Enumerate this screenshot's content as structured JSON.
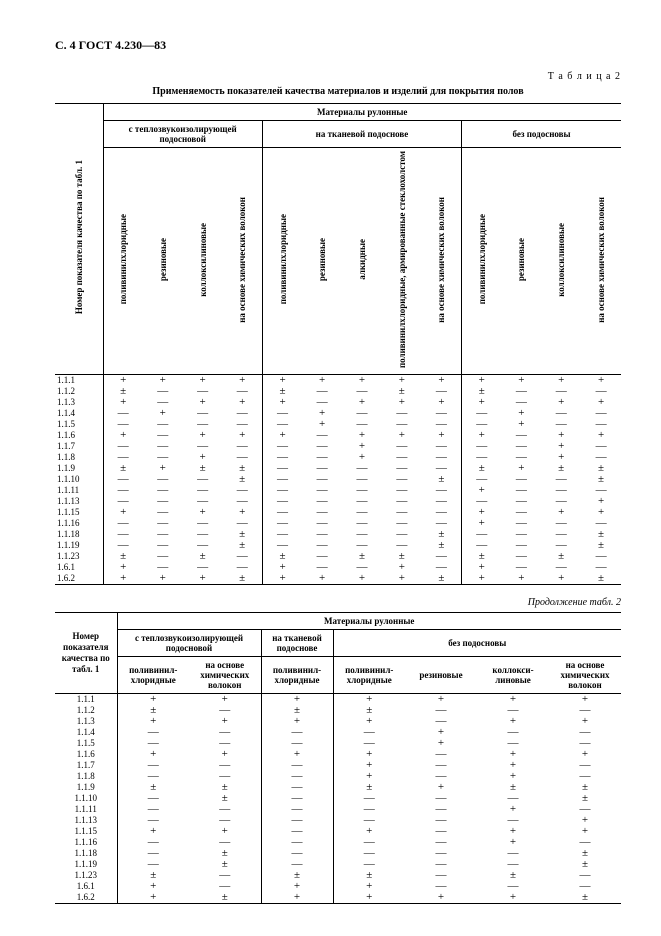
{
  "header": "С. 4 ГОСТ 4.230—83",
  "table_label": "Т а б л и ц а  2",
  "caption": "Применяемость показателей качества материалов и изделий для покрытия полов",
  "cont_label": "Продолжение табл. 2",
  "top": {
    "super": "Материалы рулонные",
    "groups": [
      "с теплозвукоизолирующей подосновой",
      "на тканевой подоснове",
      "без подосновы"
    ],
    "rowhdr": "Номер показателя качества по табл. 1",
    "cols": [
      "поливинилхлоридные",
      "резиновые",
      "коллоксилиновые",
      "на основе химических волокон",
      "поливинилхлоридные",
      "резиновые",
      "алкидные",
      "поливинилхлоридные, армированные стеклохолстом",
      "на основе химических волокон",
      "поливинилхлоридные",
      "резиновые",
      "коллоксилиновые",
      "на основе химических волокон"
    ],
    "rows": [
      {
        "k": "1.1.1",
        "v": [
          "+",
          "+",
          "+",
          "+",
          "+",
          "+",
          "+",
          "+",
          "+",
          "+",
          "+",
          "+",
          "+"
        ]
      },
      {
        "k": "1.1.2",
        "v": [
          "±",
          "—",
          "—",
          "—",
          "±",
          "—",
          "—",
          "±",
          "—",
          "±",
          "—",
          "—",
          "—"
        ]
      },
      {
        "k": "1.1.3",
        "v": [
          "+",
          "—",
          "+",
          "+",
          "+",
          "—",
          "+",
          "+",
          "+",
          "+",
          "—",
          "+",
          "+"
        ]
      },
      {
        "k": "1.1.4",
        "v": [
          "—",
          "+",
          "—",
          "—",
          "—",
          "+",
          "—",
          "—",
          "—",
          "—",
          "+",
          "—",
          "—"
        ]
      },
      {
        "k": "1.1.5",
        "v": [
          "—",
          "—",
          "—",
          "—",
          "—",
          "+",
          "—",
          "—",
          "—",
          "—",
          "+",
          "—",
          "—"
        ]
      },
      {
        "k": "1.1.6",
        "v": [
          "+",
          "—",
          "+",
          "+",
          "+",
          "—",
          "+",
          "+",
          "+",
          "+",
          "—",
          "+",
          "+"
        ]
      },
      {
        "k": "1.1.7",
        "v": [
          "—",
          "—",
          "—",
          "—",
          "—",
          "—",
          "+",
          "—",
          "—",
          "—",
          "—",
          "+",
          "—"
        ]
      },
      {
        "k": "1.1.8",
        "v": [
          "—",
          "—",
          "+",
          "—",
          "—",
          "—",
          "+",
          "—",
          "—",
          "—",
          "—",
          "+",
          "—"
        ]
      },
      {
        "k": "1.1.9",
        "v": [
          "±",
          "+",
          "±",
          "±",
          "—",
          "—",
          "—",
          "—",
          "—",
          "±",
          "+",
          "±",
          "±"
        ]
      },
      {
        "k": "1.1.10",
        "v": [
          "—",
          "—",
          "—",
          "±",
          "—",
          "—",
          "—",
          "—",
          "±",
          "—",
          "—",
          "—",
          "±"
        ]
      },
      {
        "k": "1.1.11",
        "v": [
          "—",
          "—",
          "—",
          "—",
          "—",
          "—",
          "—",
          "—",
          "—",
          "+",
          "—",
          "—",
          "—"
        ]
      },
      {
        "k": "1.1.13",
        "v": [
          "—",
          "—",
          "—",
          "—",
          "—",
          "—",
          "—",
          "—",
          "—",
          "—",
          "—",
          "—",
          "+"
        ]
      },
      {
        "k": "1.1.15",
        "v": [
          "+",
          "—",
          "+",
          "+",
          "—",
          "—",
          "—",
          "—",
          "—",
          "+",
          "—",
          "+",
          "+"
        ]
      },
      {
        "k": "1.1.16",
        "v": [
          "—",
          "—",
          "—",
          "—",
          "—",
          "—",
          "—",
          "—",
          "—",
          "+",
          "—",
          "—",
          "—"
        ]
      },
      {
        "k": "1.1.18",
        "v": [
          "—",
          "—",
          "—",
          "±",
          "—",
          "—",
          "—",
          "—",
          "±",
          "—",
          "—",
          "—",
          "±"
        ]
      },
      {
        "k": "1.1.19",
        "v": [
          "—",
          "—",
          "—",
          "±",
          "—",
          "—",
          "—",
          "—",
          "±",
          "—",
          "—",
          "—",
          "±"
        ]
      },
      {
        "k": "1.1.23",
        "v": [
          "±",
          "—",
          "±",
          "—",
          "±",
          "—",
          "±",
          "±",
          "—",
          "±",
          "—",
          "±",
          "—"
        ]
      },
      {
        "k": "1.6.1",
        "v": [
          "+",
          "—",
          "—",
          "—",
          "+",
          "—",
          "—",
          "+",
          "—",
          "+",
          "—",
          "—",
          "—"
        ]
      },
      {
        "k": "1.6.2",
        "v": [
          "+",
          "+",
          "+",
          "±",
          "+",
          "+",
          "+",
          "+",
          "±",
          "+",
          "+",
          "+",
          "±"
        ]
      }
    ]
  },
  "bot": {
    "super": "Материалы рулонные",
    "groups": [
      "с теплозвукоизолирующей подосновой",
      "на тканевой подоснове",
      "без подосновы"
    ],
    "rowhdr": "Номер показателя качества по табл. 1",
    "cols": [
      "поливинил-\nхлоридные",
      "на основе\nхимических\nволокон",
      "поливинил-\nхлоридные",
      "поливинил-\nхлоридные",
      "резиновые",
      "коллокси-\nлиновые",
      "на основе\nхимических\nволокон"
    ],
    "rows": [
      {
        "k": "1.1.1",
        "v": [
          "+",
          "+",
          "+",
          "+",
          "+",
          "+",
          "+"
        ]
      },
      {
        "k": "1.1.2",
        "v": [
          "±",
          "—",
          "±",
          "±",
          "—",
          "—",
          "—"
        ]
      },
      {
        "k": "1.1.3",
        "v": [
          "+",
          "+",
          "+",
          "+",
          "—",
          "+",
          "+"
        ]
      },
      {
        "k": "1.1.4",
        "v": [
          "—",
          "—",
          "—",
          "—",
          "+",
          "—",
          "—"
        ]
      },
      {
        "k": "1.1.5",
        "v": [
          "—",
          "—",
          "—",
          "—",
          "+",
          "—",
          "—"
        ]
      },
      {
        "k": "1.1.6",
        "v": [
          "+",
          "+",
          "+",
          "+",
          "—",
          "+",
          "+"
        ]
      },
      {
        "k": "1.1.7",
        "v": [
          "—",
          "—",
          "—",
          "+",
          "—",
          "+",
          "—"
        ]
      },
      {
        "k": "1.1.8",
        "v": [
          "—",
          "—",
          "—",
          "+",
          "—",
          "+",
          "—"
        ]
      },
      {
        "k": "1.1.9",
        "v": [
          "±",
          "±",
          "—",
          "±",
          "+",
          "±",
          "±"
        ]
      },
      {
        "k": "1.1.10",
        "v": [
          "—",
          "±",
          "—",
          "—",
          "—",
          "—",
          "±"
        ]
      },
      {
        "k": "1.1.11",
        "v": [
          "—",
          "—",
          "—",
          "—",
          "—",
          "+",
          "—"
        ]
      },
      {
        "k": "1.1.13",
        "v": [
          "—",
          "—",
          "—",
          "—",
          "—",
          "—",
          "+"
        ]
      },
      {
        "k": "1.1.15",
        "v": [
          "+",
          "+",
          "—",
          "+",
          "—",
          "+",
          "+"
        ]
      },
      {
        "k": "1.1.16",
        "v": [
          "—",
          "—",
          "—",
          "—",
          "—",
          "+",
          "—"
        ]
      },
      {
        "k": "1.1.18",
        "v": [
          "—",
          "±",
          "—",
          "—",
          "—",
          "—",
          "±"
        ]
      },
      {
        "k": "1.1.19",
        "v": [
          "—",
          "±",
          "—",
          "—",
          "—",
          "—",
          "±"
        ]
      },
      {
        "k": "1.1.23",
        "v": [
          "±",
          "—",
          "±",
          "±",
          "—",
          "±",
          "—"
        ]
      },
      {
        "k": "1.6.1",
        "v": [
          "+",
          "—",
          "+",
          "+",
          "—",
          "—",
          "—"
        ]
      },
      {
        "k": "1.6.2",
        "v": [
          "+",
          "±",
          "+",
          "+",
          "+",
          "+",
          "±"
        ]
      }
    ]
  }
}
